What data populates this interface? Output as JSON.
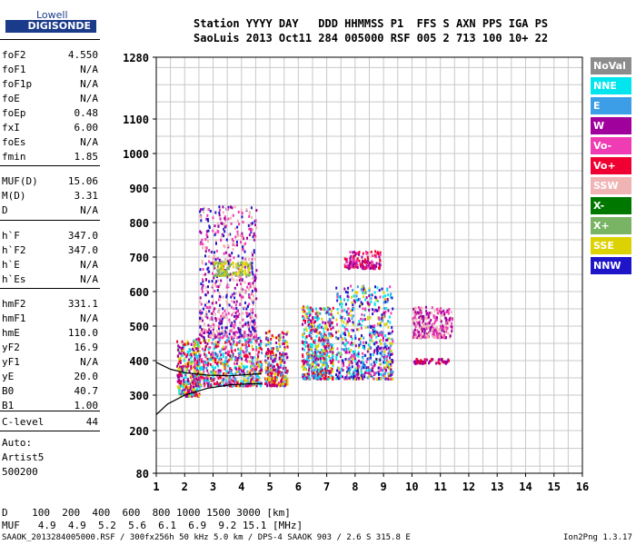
{
  "logo": {
    "top": "Lowell",
    "bottom": "DIGISONDE"
  },
  "header": {
    "line1": "Station YYYY DAY   DDD HHMMSS P1  FFS S AXN PPS IGA PS",
    "line2": "SaoLuis 2013 Oct11 284 005000 RSF 005 2 713 100 10+ 22"
  },
  "params_group1": [
    {
      "name": "foF2",
      "value": "4.550"
    },
    {
      "name": "foF1",
      "value": "N/A"
    },
    {
      "name": "foF1p",
      "value": "N/A"
    },
    {
      "name": "foE",
      "value": "N/A"
    },
    {
      "name": "foEp",
      "value": "0.48"
    },
    {
      "name": "fxI",
      "value": "6.00"
    },
    {
      "name": "foEs",
      "value": "N/A"
    },
    {
      "name": "fmin",
      "value": "1.85"
    }
  ],
  "params_group2": [
    {
      "name": "MUF(D)",
      "value": "15.06"
    },
    {
      "name": "M(D)",
      "value": "3.31"
    },
    {
      "name": "D",
      "value": "N/A"
    }
  ],
  "params_group3": [
    {
      "name": "h`F",
      "value": "347.0"
    },
    {
      "name": "h`F2",
      "value": "347.0"
    },
    {
      "name": "h`E",
      "value": "N/A"
    },
    {
      "name": "h`Es",
      "value": "N/A"
    }
  ],
  "params_group4": [
    {
      "name": "hmF2",
      "value": "331.1"
    },
    {
      "name": "hmF1",
      "value": "N/A"
    },
    {
      "name": "hmE",
      "value": "110.0"
    },
    {
      "name": "yF2",
      "value": "16.9"
    },
    {
      "name": "yF1",
      "value": "N/A"
    },
    {
      "name": "yE",
      "value": "20.0"
    },
    {
      "name": "B0",
      "value": "40.7"
    },
    {
      "name": "B1",
      "value": "1.00"
    }
  ],
  "c_level": {
    "name": "C-level",
    "value": "44"
  },
  "auto": {
    "label": "Auto:",
    "artist": "Artist5",
    "version": "500200"
  },
  "legend": [
    {
      "label": "NoVal",
      "color": "#8c8c8c"
    },
    {
      "label": "NNE",
      "color": "#00e5ee"
    },
    {
      "label": "E",
      "color": "#3c9ee6"
    },
    {
      "label": "W",
      "color": "#a0009c"
    },
    {
      "label": "Vo-",
      "color": "#f03cb4"
    },
    {
      "label": "Vo+",
      "color": "#f00032"
    },
    {
      "label": "SSW",
      "color": "#f0b4b4"
    },
    {
      "label": "X-",
      "color": "#007800"
    },
    {
      "label": "X+",
      "color": "#78b464"
    },
    {
      "label": "SSE",
      "color": "#dcd200"
    },
    {
      "label": "NNW",
      "color": "#1e14c8"
    }
  ],
  "bottom_rows": {
    "d_row": "D    100  200  400  600  800 1000 1500 3000 [km]",
    "muf_row": "MUF   4.9  4.9  5.2  5.6  6.1  6.9  9.2 15.1 [MHz]"
  },
  "footer": {
    "left": "SAAOK_2013284005000.RSF / 300fx256h 50 kHz 5.0 km / DPS-4 SAAOK 903 / 2.6 S 315.8 E",
    "right": "Ion2Png 1.3.17"
  },
  "chart_data": {
    "type": "scatter",
    "x_ticks": [
      1,
      2,
      3,
      4,
      5,
      6,
      7,
      8,
      9,
      10,
      11,
      12,
      13,
      14,
      15,
      16
    ],
    "y_ticks": [
      80,
      200,
      300,
      400,
      500,
      600,
      700,
      800,
      900,
      1000,
      1100,
      1280
    ],
    "xlim": [
      1,
      16
    ],
    "ylim": [
      80,
      1280
    ],
    "grid": true,
    "clusters": [
      {
        "x": [
          1.7,
          2.5
        ],
        "y": [
          300,
          460
        ],
        "colors": [
          "#a0009c",
          "#f00032",
          "#dcd200",
          "#00e5ee"
        ]
      },
      {
        "x": [
          2.3,
          4.7
        ],
        "y": [
          330,
          470
        ],
        "colors": [
          "#a0009c",
          "#f00032",
          "#dcd200",
          "#00e5ee",
          "#3c9ee6",
          "#f03cb4"
        ]
      },
      {
        "x": [
          2.5,
          4.5
        ],
        "y": [
          470,
          850
        ],
        "colors": [
          "#a0009c",
          "#f03cb4",
          "#f0b4b4",
          "#1e14c8"
        ]
      },
      {
        "x": [
          3.0,
          4.3
        ],
        "y": [
          650,
          690
        ],
        "colors": [
          "#dcd200",
          "#78b464"
        ]
      },
      {
        "x": [
          4.8,
          5.6
        ],
        "y": [
          330,
          490
        ],
        "colors": [
          "#a0009c",
          "#f00032",
          "#dcd200",
          "#3c9ee6"
        ]
      },
      {
        "x": [
          6.1,
          7.2
        ],
        "y": [
          350,
          560
        ],
        "colors": [
          "#00e5ee",
          "#3c9ee6",
          "#a0009c",
          "#dcd200",
          "#f00032"
        ]
      },
      {
        "x": [
          7.3,
          9.3
        ],
        "y": [
          350,
          620
        ],
        "colors": [
          "#00e5ee",
          "#3c9ee6",
          "#a0009c",
          "#1e14c8",
          "#dcd200",
          "#f03cb4"
        ]
      },
      {
        "x": [
          7.6,
          8.9
        ],
        "y": [
          670,
          720
        ],
        "colors": [
          "#f03cb4",
          "#a0009c",
          "#f00032"
        ]
      },
      {
        "x": [
          10.0,
          11.4
        ],
        "y": [
          470,
          560
        ],
        "colors": [
          "#f03cb4",
          "#a0009c",
          "#f0b4b4"
        ]
      },
      {
        "x": [
          10.0,
          11.3
        ],
        "y": [
          395,
          408
        ],
        "colors": [
          "#f00032",
          "#a0009c"
        ]
      }
    ],
    "trace_upper": [
      [
        1.0,
        395
      ],
      [
        1.5,
        375
      ],
      [
        2.0,
        365
      ],
      [
        2.8,
        358
      ],
      [
        3.6,
        356
      ],
      [
        4.3,
        360
      ],
      [
        4.7,
        362
      ]
    ],
    "trace_lower": [
      [
        1.0,
        245
      ],
      [
        1.4,
        275
      ],
      [
        2.0,
        300
      ],
      [
        2.8,
        320
      ],
      [
        3.6,
        330
      ],
      [
        4.3,
        333
      ],
      [
        4.7,
        333
      ]
    ]
  }
}
